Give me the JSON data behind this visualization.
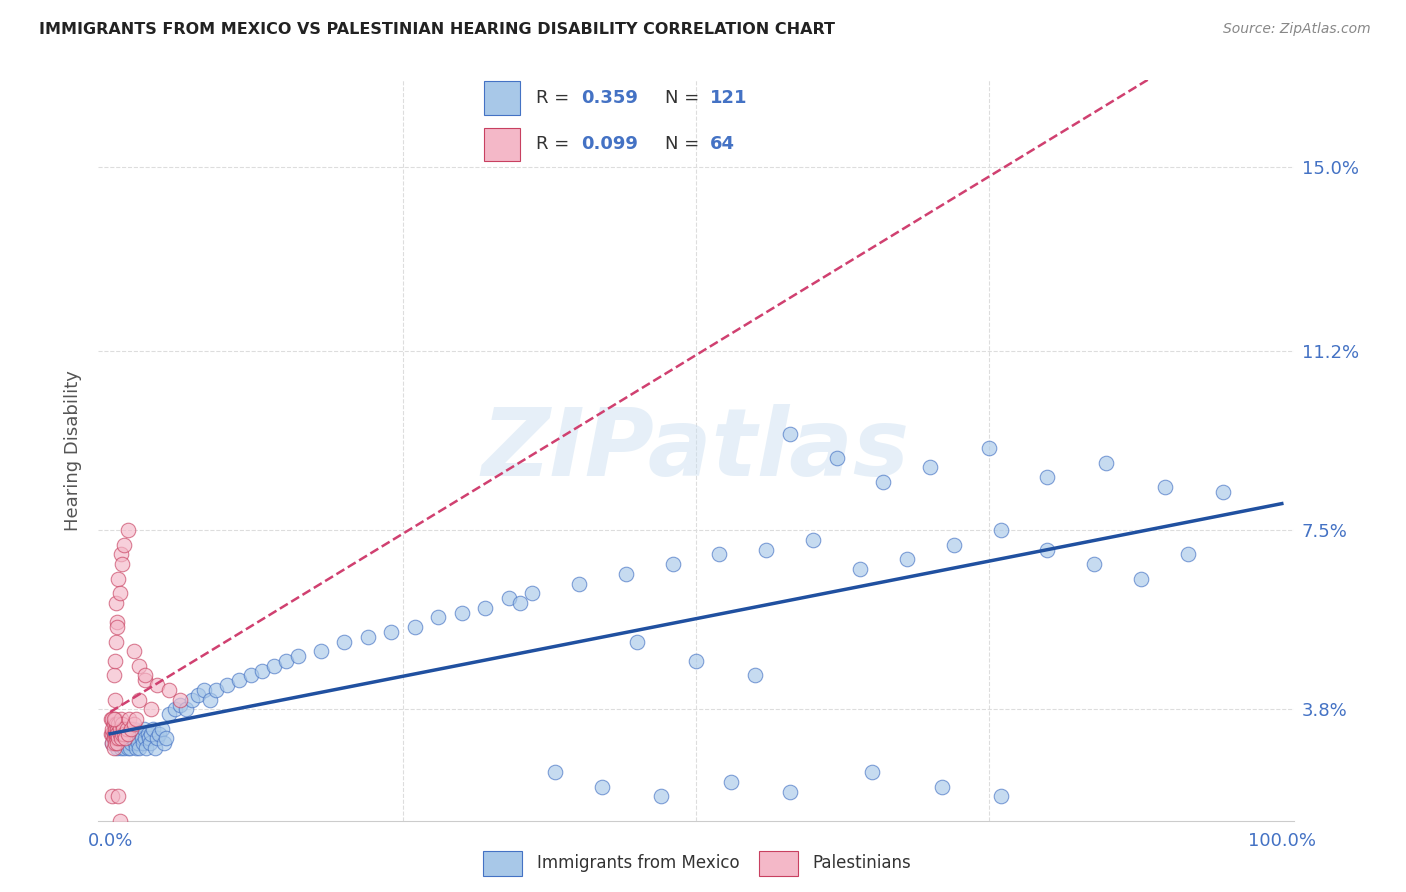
{
  "title": "IMMIGRANTS FROM MEXICO VS PALESTINIAN HEARING DISABILITY CORRELATION CHART",
  "source": "Source: ZipAtlas.com",
  "ylabel": "Hearing Disability",
  "ytick_labels": [
    "3.8%",
    "7.5%",
    "11.2%",
    "15.0%"
  ],
  "ytick_values": [
    0.038,
    0.075,
    0.112,
    0.15
  ],
  "xlim": [
    -0.01,
    1.01
  ],
  "ylim": [
    0.015,
    0.168
  ],
  "blue_fill": "#a8c8e8",
  "blue_edge": "#4472c4",
  "pink_fill": "#f4b8c8",
  "pink_edge": "#c84060",
  "blue_line": "#2050a0",
  "pink_line": "#d04070",
  "axis_label_color": "#4472c4",
  "ylabel_color": "#555555",
  "grid_color": "#dddddd",
  "title_color": "#222222",
  "source_color": "#888888",
  "watermark_color": "#c8ddf0",
  "watermark_text": "ZIPatlas",
  "legend_text_color": "#4472c4",
  "bottom_legend_color": "#333333",
  "blue_x": [
    0.002,
    0.003,
    0.003,
    0.004,
    0.004,
    0.005,
    0.005,
    0.005,
    0.006,
    0.006,
    0.006,
    0.007,
    0.007,
    0.007,
    0.008,
    0.008,
    0.009,
    0.009,
    0.01,
    0.01,
    0.01,
    0.011,
    0.011,
    0.012,
    0.012,
    0.013,
    0.013,
    0.014,
    0.015,
    0.015,
    0.016,
    0.016,
    0.017,
    0.018,
    0.018,
    0.019,
    0.02,
    0.021,
    0.022,
    0.022,
    0.023,
    0.024,
    0.025,
    0.026,
    0.027,
    0.028,
    0.029,
    0.03,
    0.031,
    0.032,
    0.033,
    0.034,
    0.035,
    0.037,
    0.038,
    0.04,
    0.042,
    0.044,
    0.046,
    0.048,
    0.05,
    0.055,
    0.06,
    0.065,
    0.07,
    0.075,
    0.08,
    0.085,
    0.09,
    0.1,
    0.11,
    0.12,
    0.13,
    0.14,
    0.15,
    0.16,
    0.18,
    0.2,
    0.22,
    0.24,
    0.26,
    0.28,
    0.3,
    0.32,
    0.34,
    0.36,
    0.4,
    0.44,
    0.48,
    0.52,
    0.56,
    0.6,
    0.64,
    0.68,
    0.72,
    0.76,
    0.8,
    0.84,
    0.88,
    0.92,
    0.58,
    0.62,
    0.66,
    0.7,
    0.75,
    0.8,
    0.85,
    0.9,
    0.95,
    0.35,
    0.45,
    0.5,
    0.55,
    0.38,
    0.42,
    0.47,
    0.53,
    0.58,
    0.65,
    0.71,
    0.76
  ],
  "blue_y": [
    0.031,
    0.033,
    0.032,
    0.031,
    0.034,
    0.031,
    0.032,
    0.035,
    0.03,
    0.033,
    0.034,
    0.031,
    0.033,
    0.032,
    0.031,
    0.034,
    0.032,
    0.03,
    0.031,
    0.033,
    0.032,
    0.031,
    0.034,
    0.033,
    0.03,
    0.032,
    0.034,
    0.031,
    0.033,
    0.03,
    0.032,
    0.034,
    0.03,
    0.033,
    0.031,
    0.032,
    0.034,
    0.031,
    0.033,
    0.03,
    0.032,
    0.031,
    0.03,
    0.033,
    0.032,
    0.031,
    0.034,
    0.032,
    0.03,
    0.033,
    0.032,
    0.031,
    0.033,
    0.034,
    0.03,
    0.032,
    0.033,
    0.034,
    0.031,
    0.032,
    0.037,
    0.038,
    0.039,
    0.038,
    0.04,
    0.041,
    0.042,
    0.04,
    0.042,
    0.043,
    0.044,
    0.045,
    0.046,
    0.047,
    0.048,
    0.049,
    0.05,
    0.052,
    0.053,
    0.054,
    0.055,
    0.057,
    0.058,
    0.059,
    0.061,
    0.062,
    0.064,
    0.066,
    0.068,
    0.07,
    0.071,
    0.073,
    0.067,
    0.069,
    0.072,
    0.075,
    0.071,
    0.068,
    0.065,
    0.07,
    0.095,
    0.09,
    0.085,
    0.088,
    0.092,
    0.086,
    0.089,
    0.084,
    0.083,
    0.06,
    0.052,
    0.048,
    0.045,
    0.025,
    0.022,
    0.02,
    0.023,
    0.021,
    0.025,
    0.022,
    0.02
  ],
  "pink_x": [
    0.001,
    0.001,
    0.002,
    0.002,
    0.002,
    0.002,
    0.003,
    0.003,
    0.003,
    0.003,
    0.004,
    0.004,
    0.004,
    0.004,
    0.005,
    0.005,
    0.005,
    0.006,
    0.006,
    0.006,
    0.007,
    0.007,
    0.008,
    0.008,
    0.009,
    0.009,
    0.01,
    0.01,
    0.011,
    0.012,
    0.013,
    0.014,
    0.015,
    0.016,
    0.018,
    0.02,
    0.022,
    0.025,
    0.03,
    0.035,
    0.005,
    0.006,
    0.007,
    0.008,
    0.009,
    0.01,
    0.012,
    0.015,
    0.02,
    0.025,
    0.03,
    0.04,
    0.05,
    0.06,
    0.003,
    0.004,
    0.005,
    0.006,
    0.003,
    0.004,
    0.002,
    0.007,
    0.008,
    0.01
  ],
  "pink_y": [
    0.033,
    0.036,
    0.033,
    0.036,
    0.034,
    0.031,
    0.033,
    0.032,
    0.035,
    0.03,
    0.033,
    0.034,
    0.031,
    0.036,
    0.032,
    0.033,
    0.035,
    0.031,
    0.034,
    0.033,
    0.032,
    0.035,
    0.033,
    0.034,
    0.032,
    0.036,
    0.033,
    0.035,
    0.034,
    0.033,
    0.032,
    0.034,
    0.033,
    0.036,
    0.034,
    0.035,
    0.036,
    0.04,
    0.044,
    0.038,
    0.06,
    0.056,
    0.065,
    0.062,
    0.07,
    0.068,
    0.072,
    0.075,
    0.05,
    0.047,
    0.045,
    0.043,
    0.042,
    0.04,
    0.045,
    0.048,
    0.052,
    0.055,
    0.036,
    0.04,
    0.02,
    0.02,
    0.015,
    0.012
  ]
}
